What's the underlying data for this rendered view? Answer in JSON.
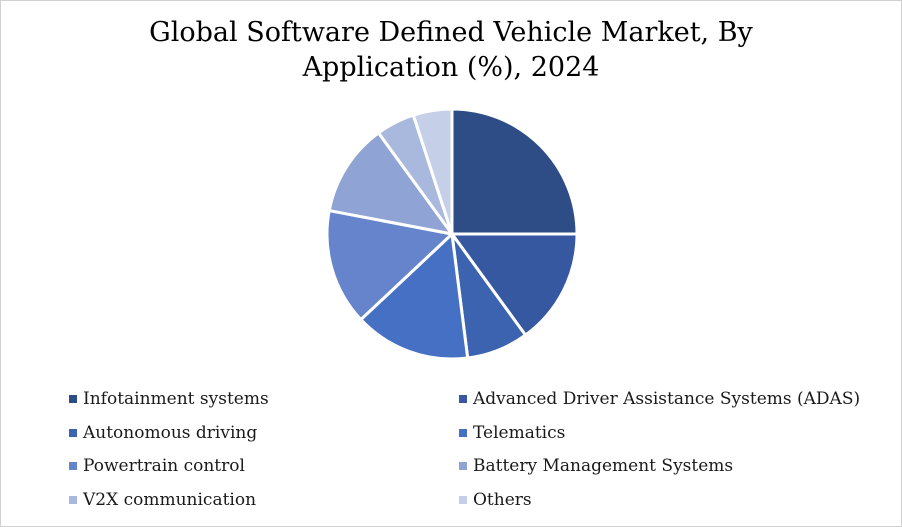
{
  "chart_data": {
    "type": "pie",
    "title": "Global Software Defined Vehicle Market, By Application (%), 2024",
    "title_lines": [
      "Global Software Defined Vehicle Market, By",
      "Application (%), 2024"
    ],
    "categories": [
      "Infotainment systems",
      "Advanced Driver Assistance Systems (ADAS)",
      "Autonomous driving",
      "Telematics",
      "Powertrain control",
      "Battery Management Systems",
      "V2X communication",
      "Others"
    ],
    "values": [
      25,
      15,
      8,
      15,
      15,
      12,
      5,
      5
    ],
    "colors": [
      "#2e4d87",
      "#3558a0",
      "#3c63b0",
      "#4670c4",
      "#6584cb",
      "#8fa3d4",
      "#a9b8dd",
      "#c5d0e8"
    ],
    "legend_position": "bottom"
  }
}
